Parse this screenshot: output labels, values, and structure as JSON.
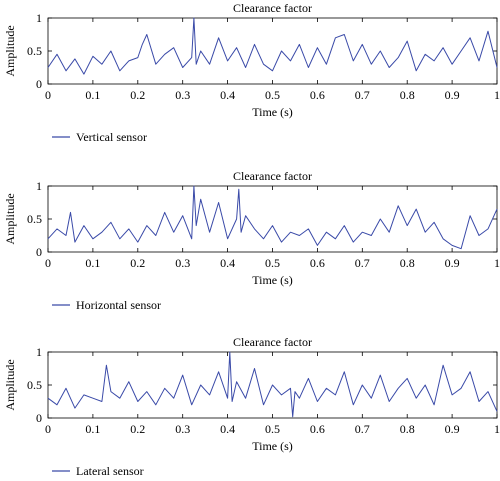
{
  "chart_data": [
    {
      "type": "line",
      "title": "Clearance factor",
      "xlabel": "Time (s)",
      "ylabel": "Amplitude",
      "xlim": [
        0,
        1
      ],
      "ylim": [
        0,
        1
      ],
      "xticks": [
        "0",
        "0.1",
        "0.2",
        "0.3",
        "0.4",
        "0.5",
        "0.6",
        "0.7",
        "0.8",
        "0.9",
        "1"
      ],
      "yticks": [
        "0",
        "0.5",
        "1"
      ],
      "grid": false,
      "legend_position": "bottom-left",
      "color": "#3a4aa8",
      "series": [
        {
          "name": "Vertical sensor",
          "x": [
            0,
            0.02,
            0.04,
            0.06,
            0.08,
            0.1,
            0.12,
            0.14,
            0.16,
            0.18,
            0.2,
            0.21,
            0.22,
            0.24,
            0.26,
            0.28,
            0.3,
            0.32,
            0.325,
            0.33,
            0.34,
            0.36,
            0.38,
            0.4,
            0.42,
            0.44,
            0.46,
            0.48,
            0.5,
            0.52,
            0.54,
            0.56,
            0.58,
            0.6,
            0.62,
            0.64,
            0.66,
            0.68,
            0.7,
            0.72,
            0.74,
            0.76,
            0.78,
            0.8,
            0.82,
            0.84,
            0.86,
            0.88,
            0.9,
            0.92,
            0.94,
            0.96,
            0.98,
            1
          ],
          "values": [
            0.25,
            0.45,
            0.2,
            0.38,
            0.15,
            0.42,
            0.3,
            0.5,
            0.2,
            0.35,
            0.4,
            0.6,
            0.75,
            0.3,
            0.45,
            0.55,
            0.25,
            0.4,
            1.0,
            0.3,
            0.5,
            0.3,
            0.7,
            0.35,
            0.55,
            0.25,
            0.6,
            0.3,
            0.2,
            0.5,
            0.35,
            0.6,
            0.25,
            0.55,
            0.3,
            0.7,
            0.75,
            0.35,
            0.6,
            0.3,
            0.5,
            0.25,
            0.4,
            0.65,
            0.2,
            0.45,
            0.35,
            0.55,
            0.3,
            0.5,
            0.7,
            0.35,
            0.8,
            0.25
          ]
        }
      ]
    },
    {
      "type": "line",
      "title": "Clearance factor",
      "xlabel": "Time (s)",
      "ylabel": "Amplitude",
      "xlim": [
        0,
        1
      ],
      "ylim": [
        0,
        1
      ],
      "xticks": [
        "0",
        "0.1",
        "0.2",
        "0.3",
        "0.4",
        "0.5",
        "0.6",
        "0.7",
        "0.8",
        "0.9",
        "1"
      ],
      "yticks": [
        "0",
        "0.5",
        "1"
      ],
      "grid": false,
      "legend_position": "bottom-left",
      "color": "#3a4aa8",
      "series": [
        {
          "name": "Horizontal sensor",
          "x": [
            0,
            0.02,
            0.04,
            0.05,
            0.06,
            0.08,
            0.1,
            0.12,
            0.14,
            0.16,
            0.18,
            0.2,
            0.22,
            0.24,
            0.26,
            0.28,
            0.3,
            0.32,
            0.325,
            0.33,
            0.34,
            0.36,
            0.38,
            0.4,
            0.42,
            0.425,
            0.43,
            0.44,
            0.46,
            0.48,
            0.5,
            0.52,
            0.54,
            0.56,
            0.58,
            0.6,
            0.62,
            0.64,
            0.66,
            0.68,
            0.7,
            0.72,
            0.74,
            0.76,
            0.78,
            0.8,
            0.82,
            0.84,
            0.86,
            0.88,
            0.9,
            0.92,
            0.94,
            0.96,
            0.98,
            1
          ],
          "values": [
            0.2,
            0.35,
            0.25,
            0.6,
            0.15,
            0.4,
            0.2,
            0.3,
            0.45,
            0.2,
            0.35,
            0.15,
            0.4,
            0.25,
            0.6,
            0.3,
            0.55,
            0.2,
            1.0,
            0.4,
            0.8,
            0.3,
            0.75,
            0.2,
            0.5,
            0.95,
            0.3,
            0.55,
            0.35,
            0.2,
            0.4,
            0.15,
            0.3,
            0.25,
            0.35,
            0.1,
            0.3,
            0.2,
            0.4,
            0.15,
            0.3,
            0.25,
            0.5,
            0.3,
            0.7,
            0.4,
            0.65,
            0.3,
            0.45,
            0.2,
            0.1,
            0.05,
            0.55,
            0.25,
            0.35,
            0.65
          ]
        }
      ]
    },
    {
      "type": "line",
      "title": "Clearance factor",
      "xlabel": "Time (s)",
      "ylabel": "Amplitude",
      "xlim": [
        0,
        1
      ],
      "ylim": [
        0,
        1
      ],
      "xticks": [
        "0",
        "0.1",
        "0.2",
        "0.3",
        "0.4",
        "0.5",
        "0.6",
        "0.7",
        "0.8",
        "0.9",
        "1"
      ],
      "yticks": [
        "0",
        "0.5",
        "1"
      ],
      "grid": false,
      "legend_position": "bottom-left",
      "color": "#3a4aa8",
      "series": [
        {
          "name": "Lateral sensor",
          "x": [
            0,
            0.02,
            0.04,
            0.06,
            0.08,
            0.1,
            0.12,
            0.13,
            0.14,
            0.16,
            0.18,
            0.2,
            0.22,
            0.24,
            0.26,
            0.28,
            0.3,
            0.32,
            0.34,
            0.36,
            0.38,
            0.4,
            0.405,
            0.41,
            0.42,
            0.44,
            0.46,
            0.48,
            0.5,
            0.52,
            0.54,
            0.545,
            0.55,
            0.56,
            0.58,
            0.6,
            0.62,
            0.64,
            0.66,
            0.68,
            0.7,
            0.72,
            0.74,
            0.76,
            0.78,
            0.8,
            0.82,
            0.84,
            0.86,
            0.88,
            0.9,
            0.92,
            0.94,
            0.96,
            0.98,
            1
          ],
          "values": [
            0.3,
            0.2,
            0.45,
            0.15,
            0.35,
            0.3,
            0.25,
            0.8,
            0.4,
            0.3,
            0.55,
            0.25,
            0.4,
            0.2,
            0.45,
            0.3,
            0.65,
            0.2,
            0.5,
            0.35,
            0.7,
            0.3,
            1.0,
            0.25,
            0.55,
            0.3,
            0.75,
            0.2,
            0.5,
            0.35,
            0.45,
            0.02,
            0.4,
            0.3,
            0.6,
            0.25,
            0.45,
            0.35,
            0.7,
            0.2,
            0.5,
            0.3,
            0.65,
            0.25,
            0.45,
            0.6,
            0.3,
            0.5,
            0.2,
            0.8,
            0.35,
            0.45,
            0.7,
            0.25,
            0.4,
            0.1
          ]
        }
      ]
    }
  ]
}
